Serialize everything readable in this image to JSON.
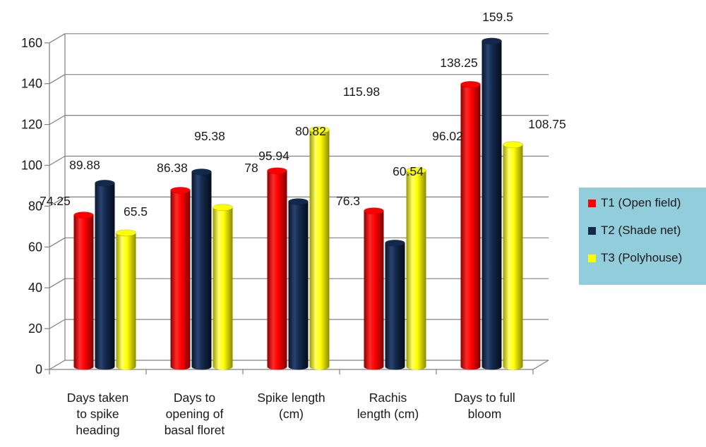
{
  "chart_data": {
    "type": "bar",
    "style": "3d-cylinder",
    "categories": [
      [
        "Days taken",
        "to spike",
        "heading"
      ],
      [
        "Days to",
        "opening of",
        "basal floret"
      ],
      [
        "Spike length",
        "(cm)"
      ],
      [
        "Rachis",
        "length (cm)"
      ],
      [
        "Days to full",
        "bloom"
      ]
    ],
    "series": [
      {
        "name": "T1 (Open field)",
        "color": "#ff0000",
        "values": [
          74.25,
          86.38,
          95.94,
          76.3,
          138.25
        ]
      },
      {
        "name": "T2 (Shade net)",
        "color": "#13294b",
        "values": [
          89.88,
          95.38,
          80.82,
          60.54,
          159.5
        ]
      },
      {
        "name": "T3 (Polyhouse)",
        "color": "#ffff00",
        "values": [
          65.5,
          78,
          115.98,
          96.02,
          108.75
        ]
      }
    ],
    "data_labels": [
      [
        "74.25",
        "89.88",
        "65.5"
      ],
      [
        "86.38",
        "95.38",
        "78"
      ],
      [
        "95.94",
        "80.82",
        "115.98"
      ],
      [
        "76.3",
        "60.54",
        "96.02"
      ],
      [
        "138.25",
        "159.5",
        "108.75"
      ]
    ],
    "ylim": [
      0,
      160
    ],
    "yticks": [
      0,
      20,
      40,
      60,
      80,
      100,
      120,
      140,
      160
    ],
    "grid": true,
    "legend": {
      "position": "right",
      "background": "#92cddc"
    }
  }
}
